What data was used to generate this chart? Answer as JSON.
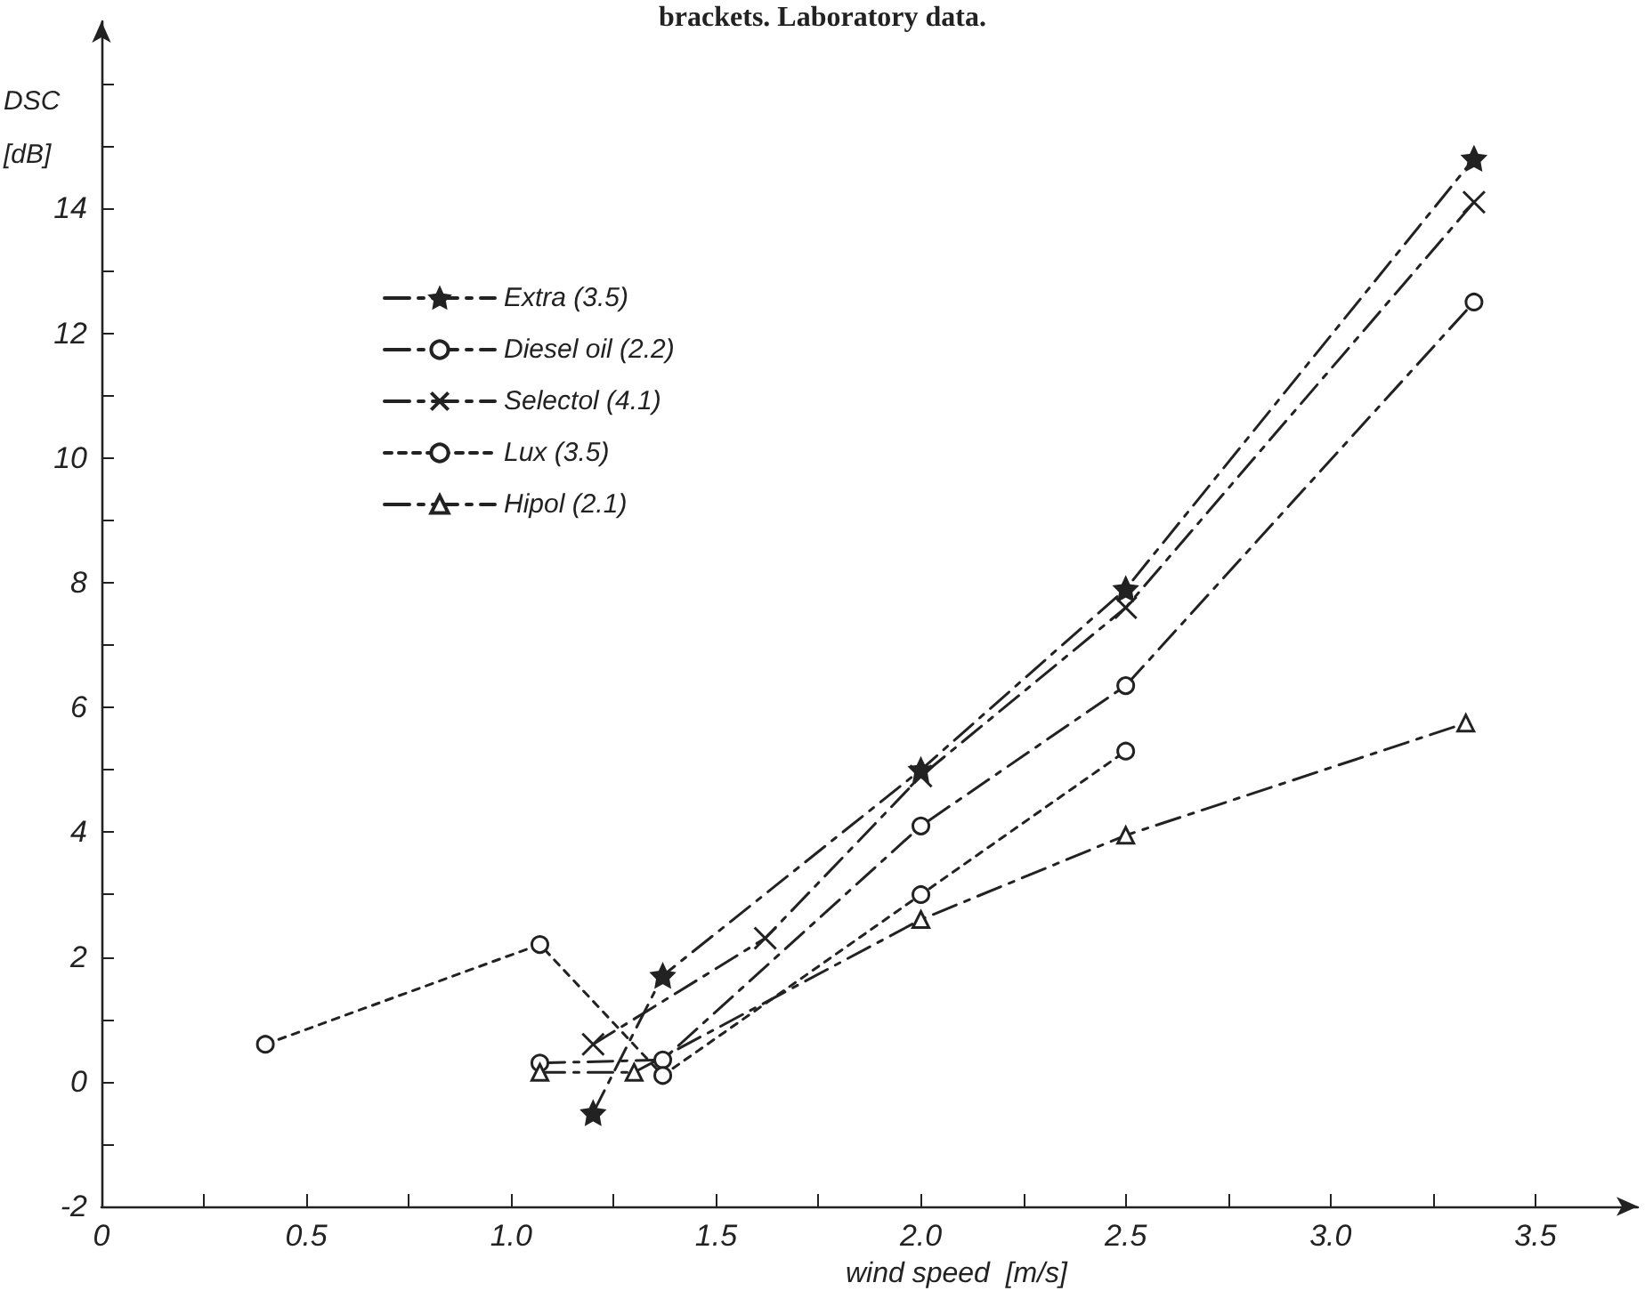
{
  "chart_data": {
    "type": "line",
    "xlabel": "wind speed  [m/s]",
    "ylabel": "DSC\n[dB]",
    "annotations": [
      "brackets. Laboratory data."
    ],
    "xlim": [
      0,
      3.75
    ],
    "ylim": [
      -2,
      17
    ],
    "xticks": [
      0,
      {
        "value": 0.25,
        "label": null
      },
      {
        "value": 0.5,
        "label": "0.5"
      },
      {
        "value": 0.75,
        "label": null
      },
      {
        "value": 1,
        "label": "1.0"
      },
      {
        "value": 1.25,
        "label": null
      },
      {
        "value": 1.5,
        "label": "1.5"
      },
      {
        "value": 1.75,
        "label": null
      },
      {
        "value": 2,
        "label": "2.0"
      },
      {
        "value": 2.25,
        "label": null
      },
      {
        "value": 2.5,
        "label": "2.5"
      },
      {
        "value": 2.75,
        "label": null
      },
      {
        "value": 3,
        "label": "3.0"
      },
      {
        "value": 3.25,
        "label": null
      },
      {
        "value": 3.5,
        "label": "3.5"
      }
    ],
    "yticks": [
      -2,
      {
        "value": -1,
        "label": null
      },
      0,
      {
        "value": 1,
        "label": null
      },
      2,
      {
        "value": 3,
        "label": null
      },
      4,
      {
        "value": 5,
        "label": null
      },
      6,
      {
        "value": 7,
        "label": null
      },
      8,
      {
        "value": 9,
        "label": null
      },
      10,
      {
        "value": 11,
        "label": null
      },
      12,
      {
        "value": 13,
        "label": null
      },
      14,
      {
        "value": 15,
        "label": null
      },
      {
        "value": 16,
        "label": null
      }
    ],
    "grid": false,
    "legend": "top left",
    "series": [
      {
        "name": "Extra (3.5)",
        "color": "#222222",
        "marker": "star",
        "line_style": "dashed",
        "x": [
          1.2,
          1.37,
          2.0,
          2.5,
          3.35
        ],
        "values": [
          -0.5,
          1.7,
          5.0,
          7.9,
          14.8
        ]
      },
      {
        "name": "Diesel oil (2.2)",
        "color": "#222222",
        "marker": "circle",
        "line_style": "dashed",
        "x": [
          1.07,
          1.37,
          2.0,
          2.5,
          3.35
        ],
        "values": [
          0.3,
          0.35,
          4.1,
          6.35,
          12.5
        ]
      },
      {
        "name": "Selectol (4.1)",
        "color": "#222222",
        "marker": "cross",
        "line_style": "dashed",
        "x": [
          1.2,
          1.62,
          2.0,
          2.5,
          3.35
        ],
        "values": [
          0.6,
          2.3,
          4.9,
          7.6,
          14.1
        ]
      },
      {
        "name": "Lux (3.5)",
        "color": "#222222",
        "marker": "circle",
        "line_style": "dotted",
        "x": [
          0.4,
          1.07,
          1.37,
          2.0,
          2.5
        ],
        "values": [
          0.6,
          2.2,
          0.1,
          3.0,
          5.3
        ]
      },
      {
        "name": "Hipol (2.1)",
        "color": "#222222",
        "marker": "triangle",
        "line_style": "dashed",
        "x": [
          1.07,
          1.3,
          2.0,
          2.5,
          3.33
        ],
        "values": [
          0.15,
          0.15,
          2.6,
          3.95,
          5.75
        ]
      }
    ]
  }
}
